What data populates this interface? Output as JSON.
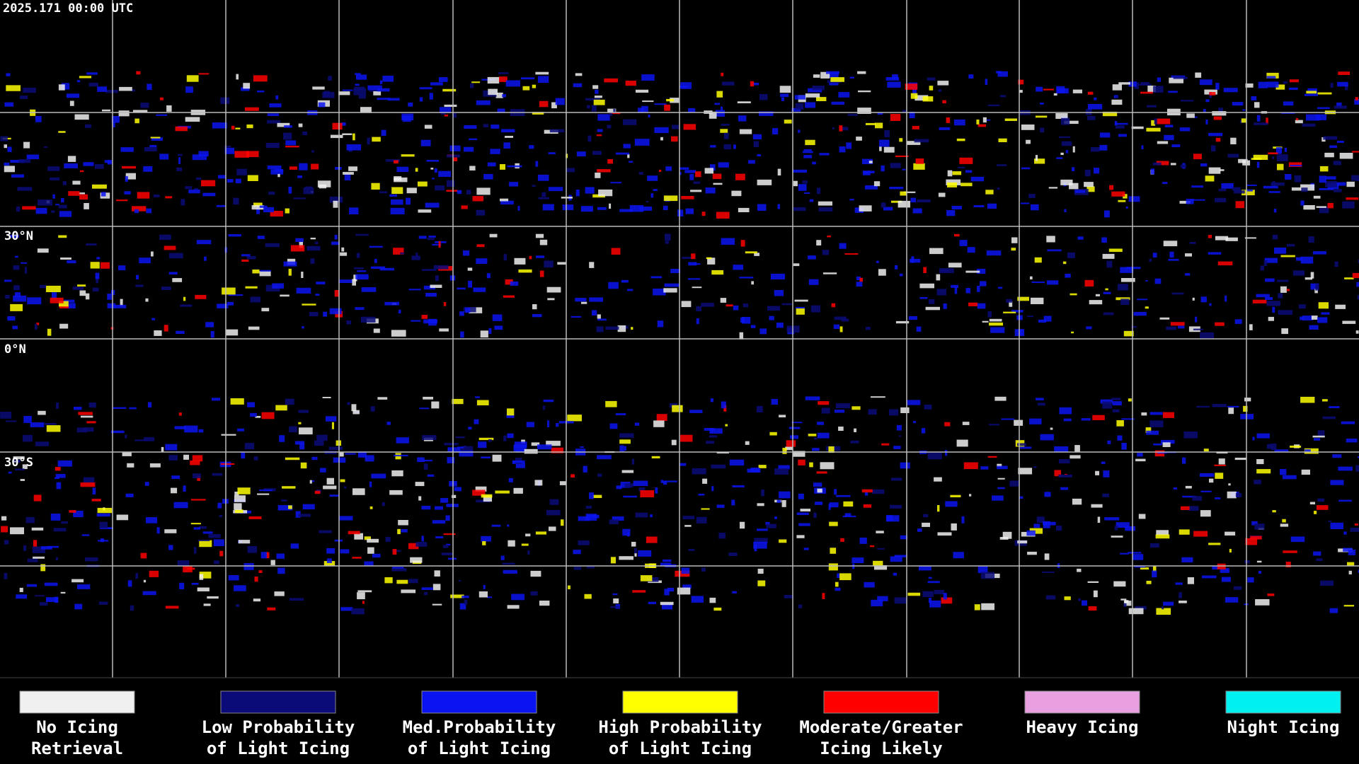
{
  "header": {
    "timestamp": "2025.171 00:00 UTC"
  },
  "map": {
    "latitude_labels": [
      "30°N",
      "0°N",
      "30°S"
    ]
  },
  "legend": {
    "items": [
      {
        "color": "#f0f0f0",
        "lines": [
          "No Icing",
          "Retrieval"
        ]
      },
      {
        "color": "#0a0a78",
        "lines": [
          "Low Probability",
          "of Light Icing"
        ]
      },
      {
        "color": "#0a14f0",
        "lines": [
          "Med.Probability",
          "of Light Icing"
        ]
      },
      {
        "color": "#ffff00",
        "lines": [
          "High Probability",
          "of Light Icing"
        ]
      },
      {
        "color": "#ff0000",
        "lines": [
          "Moderate/Greater",
          "Icing Likely"
        ]
      },
      {
        "color": "#e8a0e0",
        "lines": [
          "Heavy Icing"
        ]
      },
      {
        "color": "#00f0f0",
        "lines": [
          "Night Icing"
        ]
      }
    ]
  }
}
